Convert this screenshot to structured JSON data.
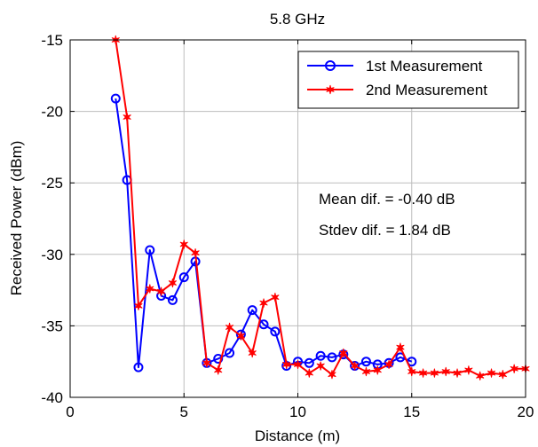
{
  "chart_data": {
    "type": "line",
    "title": "5.8 GHz",
    "xlabel": "Distance (m)",
    "ylabel": "Received Power (dBm)",
    "xlim": [
      0,
      20
    ],
    "ylim": [
      -40,
      -15
    ],
    "xticks": [
      0,
      5,
      10,
      15,
      20
    ],
    "yticks": [
      -40,
      -35,
      -30,
      -25,
      -20,
      -15
    ],
    "xtick_labels": [
      "0",
      "5",
      "10",
      "15",
      "20"
    ],
    "ytick_labels": [
      "-40",
      "-35",
      "-30",
      "-25",
      "-20",
      "-15"
    ],
    "grid": true,
    "legend_position": "top-right",
    "annotations": [
      "Mean dif. = -0.40 dB",
      "Stdev dif. = 1.84 dB"
    ],
    "series": [
      {
        "name": "1st Measurement",
        "color": "#0000ff",
        "marker": "circle",
        "x": [
          2,
          2.5,
          3,
          3.5,
          4,
          4.5,
          5,
          5.5,
          6,
          6.5,
          7,
          7.5,
          8,
          8.5,
          9,
          9.5,
          10,
          10.5,
          11,
          11.5,
          12,
          12.5,
          13,
          13.5,
          14,
          14.5,
          15
        ],
        "y": [
          -19.1,
          -24.8,
          -37.9,
          -29.7,
          -32.9,
          -33.2,
          -31.6,
          -30.5,
          -37.6,
          -37.3,
          -36.9,
          -35.6,
          -33.9,
          -34.9,
          -35.4,
          -37.8,
          -37.5,
          -37.6,
          -37.1,
          -37.2,
          -37.0,
          -37.8,
          -37.5,
          -37.7,
          -37.6,
          -37.2,
          -37.5
        ]
      },
      {
        "name": "2nd Measurement",
        "color": "#ff0000",
        "marker": "star",
        "x": [
          2,
          2.5,
          3,
          3.5,
          4,
          4.5,
          5,
          5.5,
          6,
          6.5,
          7,
          7.5,
          8,
          8.5,
          9,
          9.5,
          10,
          10.5,
          11,
          11.5,
          12,
          12.5,
          13,
          13.5,
          14,
          14.5,
          15,
          15.5,
          16,
          16.5,
          17,
          17.5,
          18,
          18.5,
          19,
          19.5,
          20
        ],
        "y": [
          -15.0,
          -20.4,
          -33.6,
          -32.4,
          -32.6,
          -32.0,
          -29.3,
          -29.9,
          -37.6,
          -38.1,
          -35.1,
          -35.7,
          -36.9,
          -33.4,
          -33.0,
          -37.7,
          -37.7,
          -38.3,
          -37.8,
          -38.4,
          -36.9,
          -37.8,
          -38.2,
          -38.1,
          -37.7,
          -36.5,
          -38.2,
          -38.3,
          -38.3,
          -38.2,
          -38.3,
          -38.1,
          -38.5,
          -38.3,
          -38.4,
          -38.0,
          -38.0
        ]
      }
    ]
  }
}
